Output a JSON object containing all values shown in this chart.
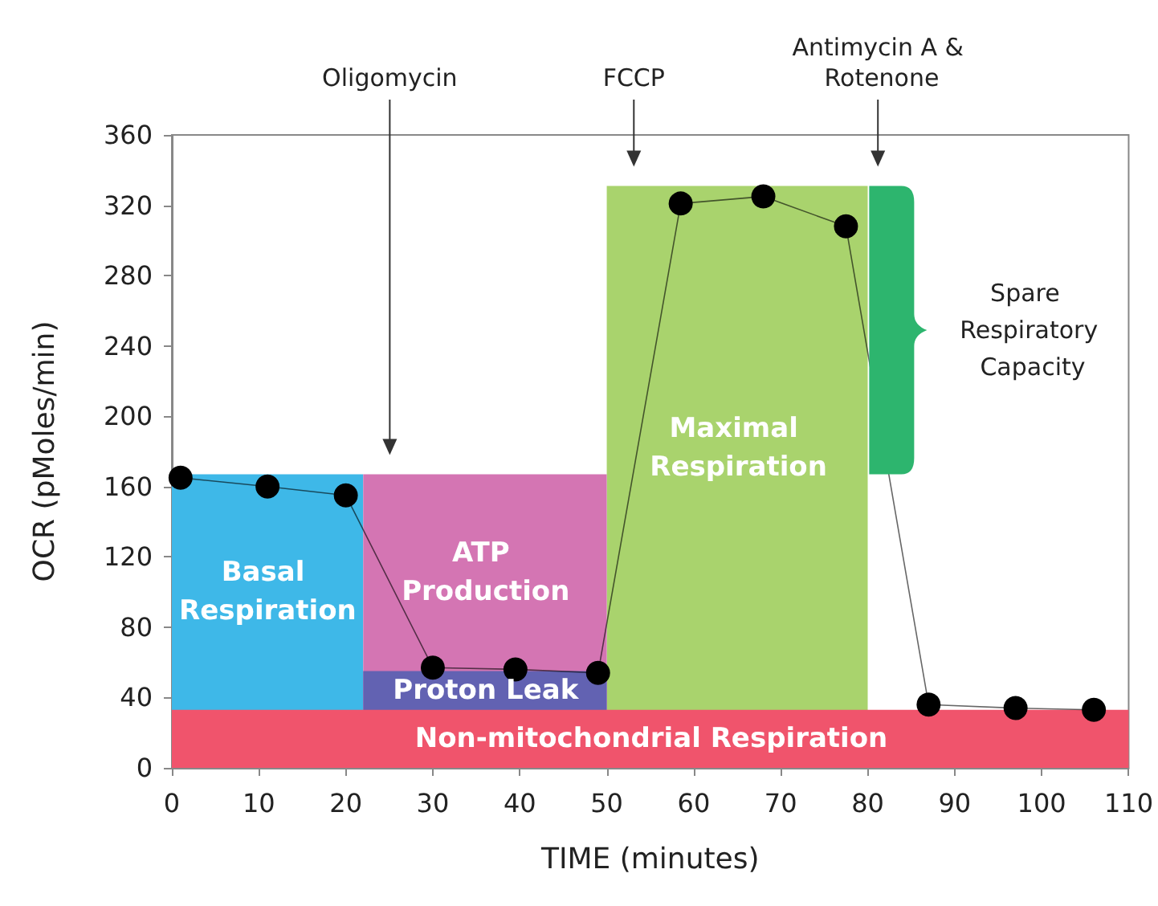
{
  "chart_data": {
    "type": "line",
    "xlabel": "TIME (minutes)",
    "ylabel": "OCR (pMoles/min)",
    "xlim": [
      0,
      110
    ],
    "xticks": [
      0,
      10,
      20,
      30,
      40,
      50,
      60,
      70,
      80,
      90,
      100,
      110
    ],
    "ylim": [
      0,
      360
    ],
    "yticks": [
      0,
      40,
      80,
      120,
      160,
      200,
      240,
      280,
      320,
      360
    ],
    "grid": false,
    "legend": false,
    "series": [
      {
        "type": "area",
        "name": "Maximal Respiration",
        "color": "#a9d36d",
        "x": [
          50,
          80
        ],
        "values": [
          331,
          331
        ]
      },
      {
        "type": "area",
        "name": "Basal Respiration",
        "color": "#3eb8e8",
        "x": [
          0,
          22
        ],
        "values": [
          167,
          167
        ]
      },
      {
        "type": "area",
        "name": "ATP Production",
        "color": "#d475b3",
        "x": [
          22,
          50
        ],
        "values": [
          167,
          167
        ]
      },
      {
        "type": "area",
        "name": "Proton Leak",
        "color": "#6262b2",
        "x": [
          22,
          50
        ],
        "values": [
          55,
          55
        ]
      },
      {
        "type": "area",
        "name": "Non-mitochondrial Respiration",
        "color": "#f0546c",
        "x": [
          0,
          110
        ],
        "values": [
          33,
          33
        ]
      },
      {
        "color": "#000000",
        "marker": "circle",
        "line_style": "solid",
        "x": [
          1,
          11,
          20,
          30,
          39.5,
          49,
          58.5,
          68,
          77.5,
          87,
          97,
          106
        ],
        "values": [
          165,
          160,
          155,
          57,
          56,
          54,
          321,
          325,
          308,
          36,
          34,
          33
        ]
      }
    ],
    "ref_lines": [
      {
        "axis": "x",
        "value": 25,
        "label": "Oligomycin"
      },
      {
        "axis": "x",
        "value": 53,
        "label": "FCCP"
      },
      {
        "axis": "x",
        "value": 81,
        "label": "Antimycin A & Rotenone"
      }
    ],
    "annotations": [
      "Spare Respiratory Capacity"
    ]
  }
}
